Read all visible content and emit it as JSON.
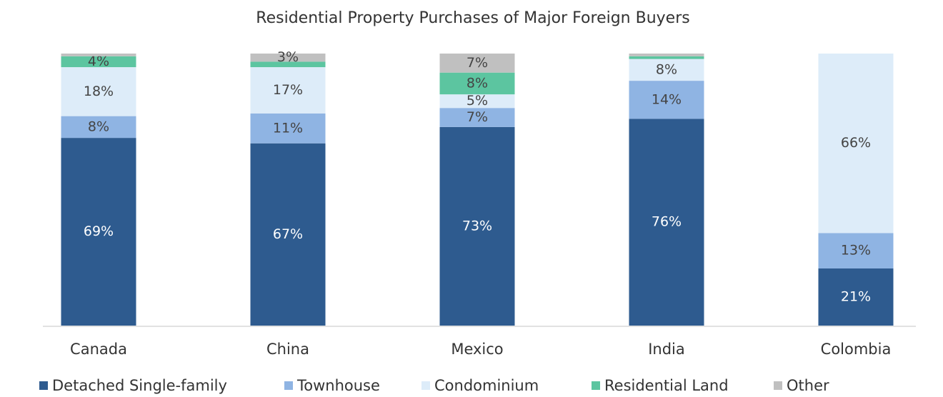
{
  "chart_data": {
    "type": "stacked_bar",
    "title": "Residential Property Purchases of Major Foreign Buyers",
    "categories": [
      "Canada",
      "China",
      "Mexico",
      "India",
      "Colombia"
    ],
    "ylim": [
      0,
      100
    ],
    "legend": "bottom",
    "series": [
      {
        "name": "Detached Single-family",
        "color": "#2e5b8f",
        "values": [
          69,
          67,
          73,
          76,
          21
        ],
        "value_labels": [
          "69%",
          "67%",
          "73%",
          "76%",
          "21%"
        ]
      },
      {
        "name": "Townhouse",
        "color": "#8fb4e3",
        "values": [
          8,
          11,
          7,
          14,
          13
        ],
        "value_labels": [
          "8%",
          "11%",
          "7%",
          "14%",
          "13%"
        ]
      },
      {
        "name": "Condominium",
        "color": "#ddecf9",
        "values": [
          18,
          17,
          5,
          8,
          66
        ],
        "value_labels": [
          "18%",
          "17%",
          "5%",
          "8%",
          "66%"
        ]
      },
      {
        "name": "Residential Land",
        "color": "#5cc5a0",
        "values": [
          4,
          2,
          8,
          1,
          0
        ],
        "value_labels": [
          "4%",
          null,
          "8%",
          null,
          null
        ]
      },
      {
        "name": "Other",
        "color": "#c0c0c0",
        "values": [
          1,
          3,
          7,
          1,
          0
        ],
        "value_labels": [
          null,
          "3%",
          "7%",
          null,
          null
        ]
      }
    ]
  }
}
